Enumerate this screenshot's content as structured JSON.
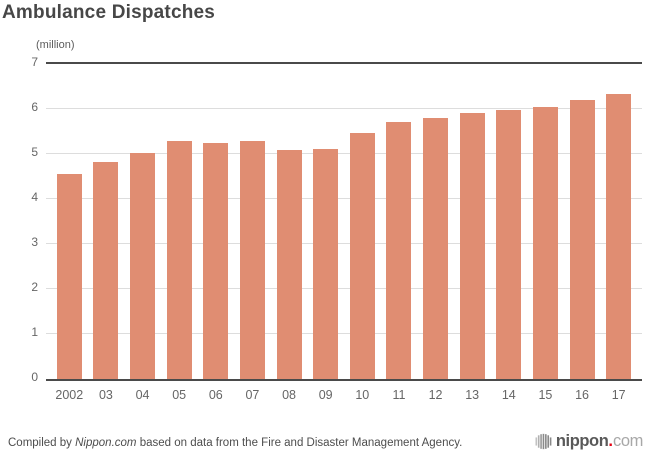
{
  "title": "Ambulance Dispatches",
  "colors": {
    "bar": "#E08D72",
    "grid": "#DDDDDD",
    "axis": "#4A4A4A",
    "logo_dot": "#E60012"
  },
  "chart_data": {
    "type": "bar",
    "title": "Ambulance Dispatches",
    "unit_label": "(million)",
    "categories": [
      "2002",
      "03",
      "04",
      "05",
      "06",
      "07",
      "08",
      "09",
      "10",
      "11",
      "12",
      "13",
      "14",
      "15",
      "16",
      "17"
    ],
    "values": [
      4.56,
      4.83,
      5.03,
      5.28,
      5.24,
      5.29,
      5.1,
      5.12,
      5.46,
      5.71,
      5.8,
      5.91,
      5.98,
      6.05,
      6.21,
      6.34
    ],
    "xlabel": "",
    "ylabel": "(million)",
    "ylim": [
      0,
      7
    ],
    "ytick_step": 1,
    "yticks": [
      0,
      1,
      2,
      3,
      4,
      5,
      6,
      7
    ],
    "grid": "horizontal",
    "legend": "none"
  },
  "footer": {
    "source_prefix": "Compiled by ",
    "source_brand": "Nippon.com",
    "source_suffix": " based on data from the Fire and Disaster Management Agency.",
    "logo": {
      "name": "nippon",
      "dot": ".",
      "tld": "com"
    }
  }
}
